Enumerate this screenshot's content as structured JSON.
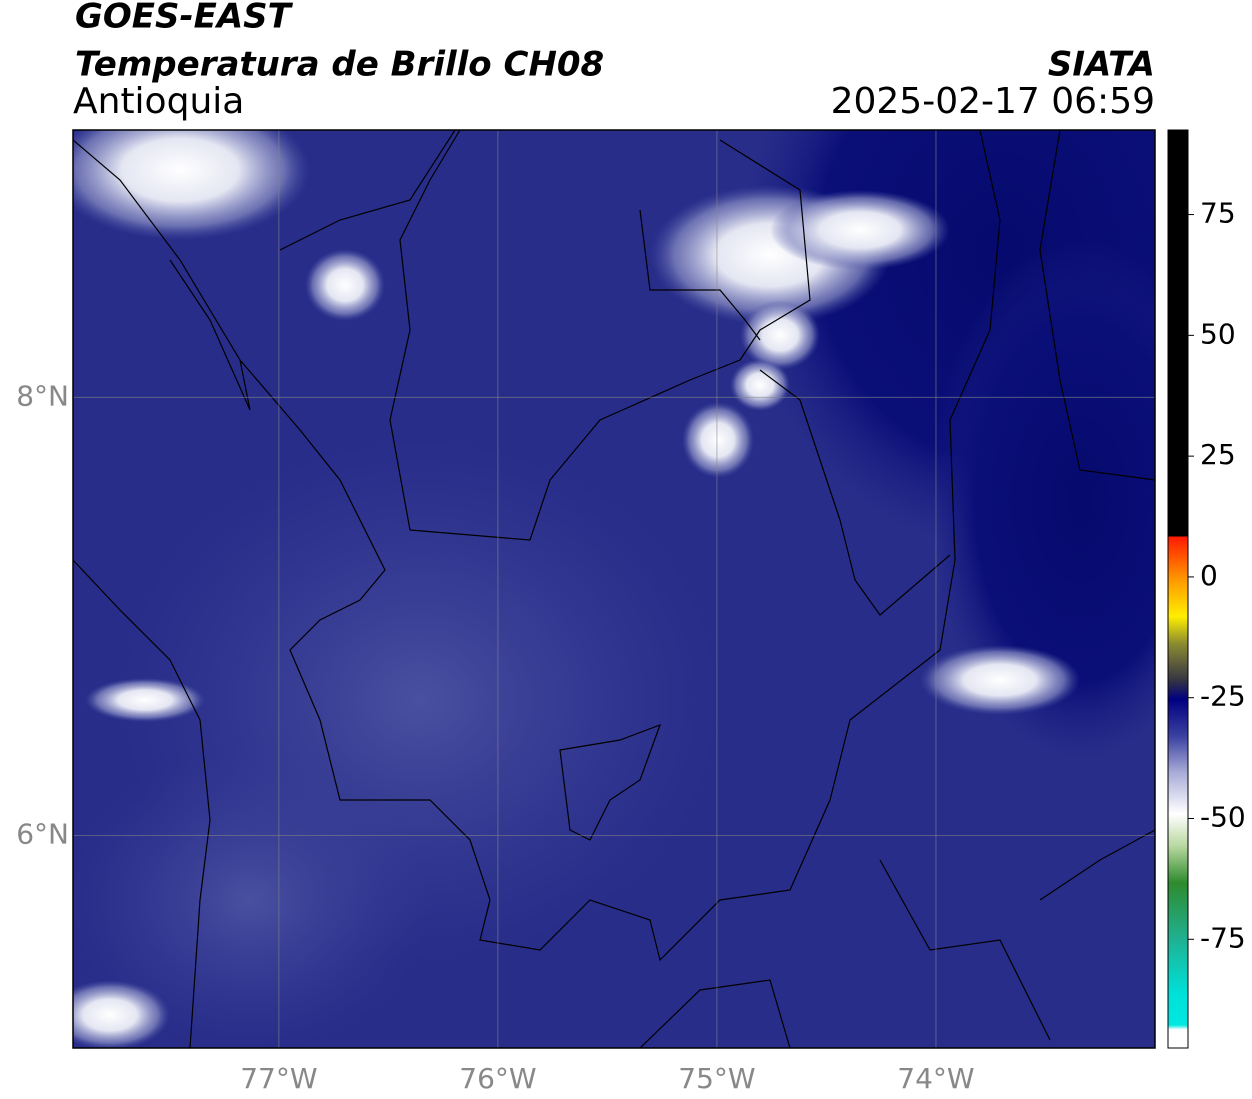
{
  "header": {
    "title": "GOES-EAST",
    "product": "Temperatura de Brillo CH08",
    "region": "Antioquia",
    "source": "SIATA",
    "datetime": "2025-02-17 06:59"
  },
  "map": {
    "xlim": [
      -77.94,
      -73.0
    ],
    "ylim": [
      5.03,
      9.22
    ],
    "xticks": [
      {
        "value": -77,
        "label": "77°W"
      },
      {
        "value": -76,
        "label": "76°W"
      },
      {
        "value": -75,
        "label": "75°W"
      },
      {
        "value": -74,
        "label": "74°W"
      }
    ],
    "yticks": [
      {
        "value": 8,
        "label": "8°N"
      },
      {
        "value": 6,
        "label": "6°N"
      }
    ],
    "grid": true
  },
  "colorbar": {
    "lim": [
      -97.5,
      92.5
    ],
    "ticks": [
      75,
      50,
      25,
      0,
      -25,
      -50,
      -75
    ]
  }
}
